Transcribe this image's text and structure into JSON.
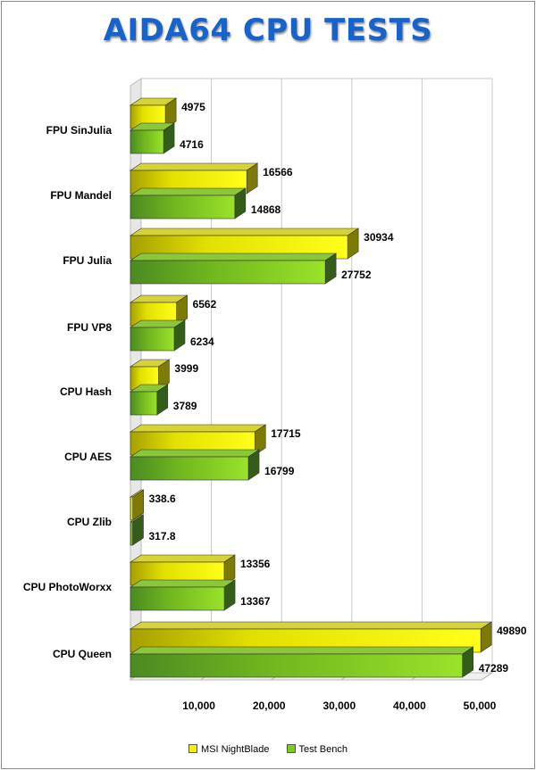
{
  "chart_data": {
    "type": "bar",
    "orientation": "horizontal",
    "title": "AIDA64 CPU TESTS",
    "categories": [
      "FPU SinJulia",
      "FPU Mandel",
      "FPU Julia",
      "FPU VP8",
      "CPU Hash",
      "CPU AES",
      "CPU Zlib",
      "CPU PhotoWorxx",
      "CPU Queen"
    ],
    "series": [
      {
        "name": "MSI NightBlade",
        "color": "#f2f200",
        "values": [
          4975,
          16566,
          30934,
          6562,
          3999,
          17715,
          338.6,
          13356,
          49890
        ],
        "labels": [
          "4975",
          "16566",
          "30934",
          "6562",
          "3999",
          "17715",
          "338.6",
          "13356",
          "49890"
        ]
      },
      {
        "name": "Test Bench",
        "color": "#7ccb1f",
        "values": [
          4716,
          14868,
          27752,
          6234,
          3789,
          16799,
          317.8,
          13367,
          47289
        ],
        "labels": [
          "4716",
          "14868",
          "27752",
          "6234",
          "3789",
          "16799",
          "317.8",
          "13367",
          "47289"
        ]
      }
    ],
    "ticks": [
      10000,
      20000,
      30000,
      40000,
      50000
    ],
    "tick_labels": [
      "10,000",
      "20,000",
      "30,000",
      "40,000",
      "50,000"
    ],
    "xlim": [
      0,
      50000
    ],
    "grid": true,
    "legend": "bottom"
  }
}
